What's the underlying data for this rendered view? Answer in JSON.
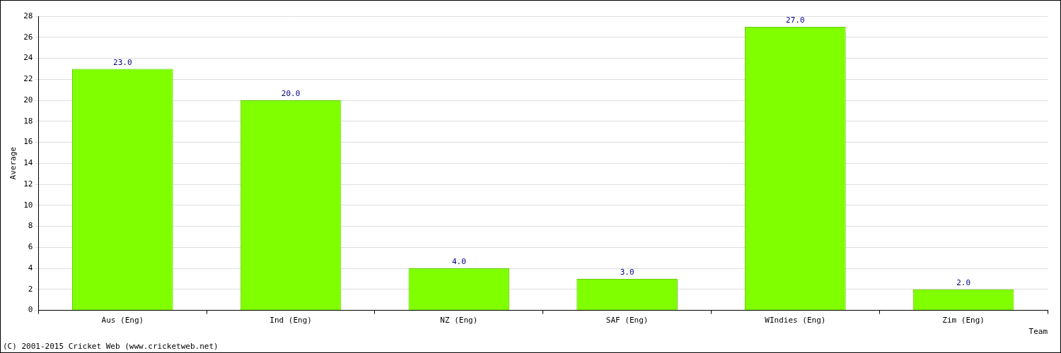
{
  "chart_data": {
    "type": "bar",
    "categories": [
      "Aus (Eng)",
      "Ind (Eng)",
      "NZ (Eng)",
      "SAF (Eng)",
      "WIndies (Eng)",
      "Zim (Eng)"
    ],
    "values": [
      23,
      20,
      4,
      3,
      27,
      2
    ],
    "value_labels": [
      "23.0",
      "20.0",
      "4.0",
      "3.0",
      "27.0",
      "2.0"
    ],
    "data_labels": true,
    "color": "#7fff00",
    "x_label": "Team",
    "y_label": "Average",
    "ylim": [
      0,
      28
    ],
    "yticks": [
      0,
      2,
      4,
      6,
      8,
      10,
      12,
      14,
      16,
      18,
      20,
      22,
      24,
      26,
      28
    ],
    "grid": true,
    "annotations": [
      "(C) 2001-2015 Cricket Web (www.cricketweb.net)"
    ]
  }
}
